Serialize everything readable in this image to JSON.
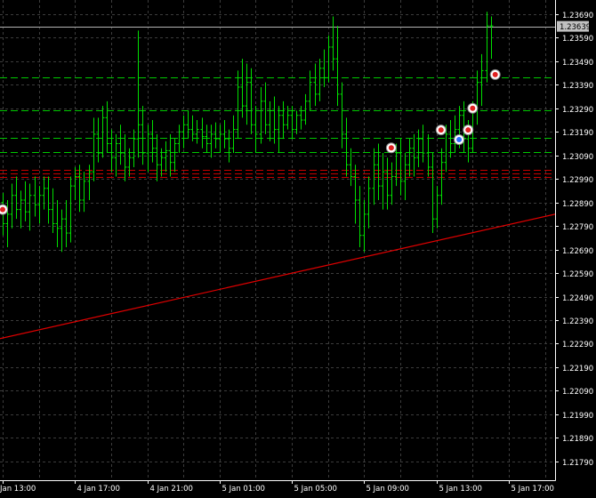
{
  "chart_data": {
    "type": "ohlc",
    "price_axis": {
      "ticks": [
        "1.23690",
        "1.23590",
        "1.23490",
        "1.23390",
        "1.23290",
        "1.23190",
        "1.23090",
        "1.22990",
        "1.22890",
        "1.22790",
        "1.22690",
        "1.22590",
        "1.22490",
        "1.22390",
        "1.22290",
        "1.22190",
        "1.22090",
        "1.21990",
        "1.21890",
        "1.21790"
      ],
      "range": [
        1.2171,
        1.2375
      ],
      "current_price": "1.23639"
    },
    "time_axis": {
      "labels": [
        "Jan 13:00",
        "4 Jan 17:00",
        "4 Jan 21:00",
        "5 Jan 01:00",
        "5 Jan 05:00",
        "5 Jan 09:00",
        "5 Jan 13:00",
        "5 Jan 17:00"
      ],
      "label_bars": [
        0,
        16,
        32,
        48,
        64,
        80,
        96,
        112
      ],
      "visible_bars": 122
    },
    "bars": [
      {
        "o": 1.2289,
        "h": 1.2293,
        "l": 1.2275,
        "c": 1.228
      },
      {
        "o": 1.228,
        "h": 1.229,
        "l": 1.227,
        "c": 1.2284
      },
      {
        "o": 1.2284,
        "h": 1.2297,
        "l": 1.2278,
        "c": 1.2292
      },
      {
        "o": 1.2292,
        "h": 1.23,
        "l": 1.2282,
        "c": 1.2286
      },
      {
        "o": 1.2286,
        "h": 1.2294,
        "l": 1.2278,
        "c": 1.229
      },
      {
        "o": 1.229,
        "h": 1.2298,
        "l": 1.2281,
        "c": 1.2285
      },
      {
        "o": 1.2285,
        "h": 1.2297,
        "l": 1.2277,
        "c": 1.2292
      },
      {
        "o": 1.2292,
        "h": 1.23,
        "l": 1.2283,
        "c": 1.2288
      },
      {
        "o": 1.2288,
        "h": 1.2296,
        "l": 1.228,
        "c": 1.2292
      },
      {
        "o": 1.2292,
        "h": 1.23,
        "l": 1.2286,
        "c": 1.2295
      },
      {
        "o": 1.2295,
        "h": 1.23,
        "l": 1.228,
        "c": 1.2286
      },
      {
        "o": 1.2286,
        "h": 1.2295,
        "l": 1.2276,
        "c": 1.228
      },
      {
        "o": 1.228,
        "h": 1.229,
        "l": 1.227,
        "c": 1.2278
      },
      {
        "o": 1.2278,
        "h": 1.2286,
        "l": 1.2268,
        "c": 1.2282
      },
      {
        "o": 1.2282,
        "h": 1.229,
        "l": 1.227,
        "c": 1.2276
      },
      {
        "o": 1.2276,
        "h": 1.23,
        "l": 1.2272,
        "c": 1.2296
      },
      {
        "o": 1.2296,
        "h": 1.2304,
        "l": 1.229,
        "c": 1.23
      },
      {
        "o": 1.23,
        "h": 1.2305,
        "l": 1.2285,
        "c": 1.229
      },
      {
        "o": 1.229,
        "h": 1.2302,
        "l": 1.2285,
        "c": 1.2298
      },
      {
        "o": 1.2298,
        "h": 1.2305,
        "l": 1.229,
        "c": 1.2302
      },
      {
        "o": 1.2302,
        "h": 1.2325,
        "l": 1.2298,
        "c": 1.2318
      },
      {
        "o": 1.2318,
        "h": 1.2325,
        "l": 1.2306,
        "c": 1.231
      },
      {
        "o": 1.231,
        "h": 1.233,
        "l": 1.2308,
        "c": 1.2325
      },
      {
        "o": 1.2325,
        "h": 1.2332,
        "l": 1.231,
        "c": 1.2314
      },
      {
        "o": 1.2314,
        "h": 1.232,
        "l": 1.2302,
        "c": 1.2308
      },
      {
        "o": 1.2308,
        "h": 1.2318,
        "l": 1.23,
        "c": 1.2314
      },
      {
        "o": 1.2314,
        "h": 1.2322,
        "l": 1.2305,
        "c": 1.231
      },
      {
        "o": 1.231,
        "h": 1.2318,
        "l": 1.2298,
        "c": 1.2304
      },
      {
        "o": 1.2304,
        "h": 1.2312,
        "l": 1.23,
        "c": 1.2308
      },
      {
        "o": 1.2308,
        "h": 1.232,
        "l": 1.2304,
        "c": 1.2316
      },
      {
        "o": 1.2316,
        "h": 1.2362,
        "l": 1.2308,
        "c": 1.2322
      },
      {
        "o": 1.2322,
        "h": 1.233,
        "l": 1.2305,
        "c": 1.231
      },
      {
        "o": 1.231,
        "h": 1.2322,
        "l": 1.2302,
        "c": 1.2318
      },
      {
        "o": 1.2318,
        "h": 1.2324,
        "l": 1.2306,
        "c": 1.2312
      },
      {
        "o": 1.2312,
        "h": 1.2318,
        "l": 1.2298,
        "c": 1.2305
      },
      {
        "o": 1.2305,
        "h": 1.2312,
        "l": 1.23,
        "c": 1.2308
      },
      {
        "o": 1.2308,
        "h": 1.2315,
        "l": 1.2302,
        "c": 1.2311
      },
      {
        "o": 1.2311,
        "h": 1.2318,
        "l": 1.23,
        "c": 1.2306
      },
      {
        "o": 1.2306,
        "h": 1.2316,
        "l": 1.2302,
        "c": 1.2314
      },
      {
        "o": 1.2314,
        "h": 1.2322,
        "l": 1.231,
        "c": 1.2319
      },
      {
        "o": 1.2319,
        "h": 1.2326,
        "l": 1.2312,
        "c": 1.2322
      },
      {
        "o": 1.2322,
        "h": 1.2328,
        "l": 1.2316,
        "c": 1.232
      },
      {
        "o": 1.232,
        "h": 1.2326,
        "l": 1.2315,
        "c": 1.2318
      },
      {
        "o": 1.2318,
        "h": 1.2324,
        "l": 1.2314,
        "c": 1.232
      },
      {
        "o": 1.232,
        "h": 1.2325,
        "l": 1.2312,
        "c": 1.2317
      },
      {
        "o": 1.2317,
        "h": 1.2322,
        "l": 1.231,
        "c": 1.2314
      },
      {
        "o": 1.2314,
        "h": 1.2322,
        "l": 1.2308,
        "c": 1.2318
      },
      {
        "o": 1.2318,
        "h": 1.2323,
        "l": 1.2312,
        "c": 1.2316
      },
      {
        "o": 1.2316,
        "h": 1.2322,
        "l": 1.231,
        "c": 1.2318
      },
      {
        "o": 1.2318,
        "h": 1.2324,
        "l": 1.2312,
        "c": 1.2316
      },
      {
        "o": 1.2316,
        "h": 1.232,
        "l": 1.2306,
        "c": 1.2312
      },
      {
        "o": 1.2312,
        "h": 1.2326,
        "l": 1.231,
        "c": 1.232
      },
      {
        "o": 1.232,
        "h": 1.2345,
        "l": 1.2316,
        "c": 1.2338
      },
      {
        "o": 1.2338,
        "h": 1.235,
        "l": 1.2325,
        "c": 1.233
      },
      {
        "o": 1.233,
        "h": 1.2348,
        "l": 1.2322,
        "c": 1.234
      },
      {
        "o": 1.234,
        "h": 1.2346,
        "l": 1.2318,
        "c": 1.2322
      },
      {
        "o": 1.2322,
        "h": 1.233,
        "l": 1.231,
        "c": 1.2318
      },
      {
        "o": 1.2318,
        "h": 1.2338,
        "l": 1.2314,
        "c": 1.2332
      },
      {
        "o": 1.2332,
        "h": 1.234,
        "l": 1.2318,
        "c": 1.2322
      },
      {
        "o": 1.2322,
        "h": 1.2332,
        "l": 1.2315,
        "c": 1.2328
      },
      {
        "o": 1.2328,
        "h": 1.2334,
        "l": 1.2314,
        "c": 1.232
      },
      {
        "o": 1.232,
        "h": 1.233,
        "l": 1.231,
        "c": 1.2326
      },
      {
        "o": 1.2326,
        "h": 1.2332,
        "l": 1.2316,
        "c": 1.2322
      },
      {
        "o": 1.2322,
        "h": 1.233,
        "l": 1.232,
        "c": 1.2326
      },
      {
        "o": 1.2326,
        "h": 1.233,
        "l": 1.2316,
        "c": 1.232
      },
      {
        "o": 1.232,
        "h": 1.2328,
        "l": 1.2318,
        "c": 1.2326
      },
      {
        "o": 1.2326,
        "h": 1.233,
        "l": 1.232,
        "c": 1.2324
      },
      {
        "o": 1.2324,
        "h": 1.2335,
        "l": 1.2322,
        "c": 1.2332
      },
      {
        "o": 1.2332,
        "h": 1.2345,
        "l": 1.2328,
        "c": 1.234
      },
      {
        "o": 1.234,
        "h": 1.2348,
        "l": 1.233,
        "c": 1.2335
      },
      {
        "o": 1.2335,
        "h": 1.235,
        "l": 1.2332,
        "c": 1.2346
      },
      {
        "o": 1.2346,
        "h": 1.2354,
        "l": 1.2338,
        "c": 1.2342
      },
      {
        "o": 1.2342,
        "h": 1.236,
        "l": 1.234,
        "c": 1.2355
      },
      {
        "o": 1.2355,
        "h": 1.2368,
        "l": 1.2345,
        "c": 1.235
      },
      {
        "o": 1.235,
        "h": 1.2364,
        "l": 1.233,
        "c": 1.2335
      },
      {
        "o": 1.2335,
        "h": 1.234,
        "l": 1.2312,
        "c": 1.2318
      },
      {
        "o": 1.2318,
        "h": 1.2325,
        "l": 1.23,
        "c": 1.2305
      },
      {
        "o": 1.2305,
        "h": 1.2312,
        "l": 1.2296,
        "c": 1.23
      },
      {
        "o": 1.23,
        "h": 1.2305,
        "l": 1.228,
        "c": 1.229
      },
      {
        "o": 1.229,
        "h": 1.2296,
        "l": 1.227,
        "c": 1.2275
      },
      {
        "o": 1.2275,
        "h": 1.229,
        "l": 1.2268,
        "c": 1.2284
      },
      {
        "o": 1.2284,
        "h": 1.23,
        "l": 1.2278,
        "c": 1.2295
      },
      {
        "o": 1.2295,
        "h": 1.2312,
        "l": 1.2288,
        "c": 1.2305
      },
      {
        "o": 1.2305,
        "h": 1.2314,
        "l": 1.229,
        "c": 1.2296
      },
      {
        "o": 1.2296,
        "h": 1.231,
        "l": 1.2286,
        "c": 1.2302
      },
      {
        "o": 1.2302,
        "h": 1.2308,
        "l": 1.2286,
        "c": 1.2292
      },
      {
        "o": 1.2292,
        "h": 1.2306,
        "l": 1.2288,
        "c": 1.23
      },
      {
        "o": 1.23,
        "h": 1.2314,
        "l": 1.2296,
        "c": 1.231
      },
      {
        "o": 1.231,
        "h": 1.2316,
        "l": 1.2292,
        "c": 1.2298
      },
      {
        "o": 1.2298,
        "h": 1.231,
        "l": 1.229,
        "c": 1.2305
      },
      {
        "o": 1.2305,
        "h": 1.2316,
        "l": 1.23,
        "c": 1.2312
      },
      {
        "o": 1.2312,
        "h": 1.2318,
        "l": 1.23,
        "c": 1.2308
      },
      {
        "o": 1.2308,
        "h": 1.232,
        "l": 1.2304,
        "c": 1.2316
      },
      {
        "o": 1.2316,
        "h": 1.2322,
        "l": 1.2306,
        "c": 1.231
      },
      {
        "o": 1.231,
        "h": 1.2318,
        "l": 1.23,
        "c": 1.2304
      },
      {
        "o": 1.2304,
        "h": 1.231,
        "l": 1.2276,
        "c": 1.2282
      },
      {
        "o": 1.2282,
        "h": 1.2296,
        "l": 1.2278,
        "c": 1.2292
      },
      {
        "o": 1.2292,
        "h": 1.2312,
        "l": 1.2288,
        "c": 1.2306
      },
      {
        "o": 1.2306,
        "h": 1.2322,
        "l": 1.2302,
        "c": 1.2318
      },
      {
        "o": 1.2318,
        "h": 1.2324,
        "l": 1.2308,
        "c": 1.2314
      },
      {
        "o": 1.2314,
        "h": 1.2326,
        "l": 1.231,
        "c": 1.232
      },
      {
        "o": 1.232,
        "h": 1.233,
        "l": 1.2312,
        "c": 1.2326
      },
      {
        "o": 1.2326,
        "h": 1.2332,
        "l": 1.231,
        "c": 1.2316
      },
      {
        "o": 1.2316,
        "h": 1.2324,
        "l": 1.2306,
        "c": 1.2312
      },
      {
        "o": 1.2312,
        "h": 1.2332,
        "l": 1.231,
        "c": 1.2328
      },
      {
        "o": 1.2328,
        "h": 1.2345,
        "l": 1.2322,
        "c": 1.234
      },
      {
        "o": 1.234,
        "h": 1.2352,
        "l": 1.233,
        "c": 1.2345
      },
      {
        "o": 1.2345,
        "h": 1.237,
        "l": 1.234,
        "c": 1.2364
      },
      {
        "o": 1.2364,
        "h": 1.2368,
        "l": 1.235,
        "c": 1.2364
      }
    ],
    "horizontal_levels": [
      {
        "price": 1.2342,
        "style": "dash",
        "color": "#00c800"
      },
      {
        "price": 1.2328,
        "style": "dash",
        "color": "#00c800"
      },
      {
        "price": 1.23165,
        "style": "dash",
        "color": "#00c800"
      },
      {
        "price": 1.23105,
        "style": "dash",
        "color": "#00c800"
      },
      {
        "price": 1.2303,
        "style": "dash",
        "color": "#c80000"
      },
      {
        "price": 1.23015,
        "style": "dash",
        "color": "#c80000"
      },
      {
        "price": 1.23,
        "style": "dash",
        "color": "#c80000"
      },
      {
        "price": 1.23638,
        "style": "solid",
        "color": "#b4b4b4"
      }
    ],
    "trendline": {
      "from": {
        "bar": -1,
        "price": 1.2231
      },
      "to": {
        "bar": 192,
        "price": 1.2314
      },
      "color": "#e00000"
    },
    "trade_markers": [
      {
        "bar": 0,
        "price": 1.2286,
        "kind": "sell"
      },
      {
        "bar": 86,
        "price": 1.23122,
        "kind": "sell"
      },
      {
        "bar": 97,
        "price": 1.23198,
        "kind": "sell"
      },
      {
        "bar": 101,
        "price": 1.23157,
        "kind": "buy"
      },
      {
        "bar": 103,
        "price": 1.23198,
        "kind": "sell"
      },
      {
        "bar": 104,
        "price": 1.2329,
        "kind": "sell"
      },
      {
        "bar": 109,
        "price": 1.23433,
        "kind": "sell"
      }
    ],
    "colors": {
      "background": "#000000",
      "bars": "#00e000",
      "grid": "#3c3c3c",
      "axis_text": "#ffffff",
      "price_label_bg": "#c0c0c0"
    }
  }
}
